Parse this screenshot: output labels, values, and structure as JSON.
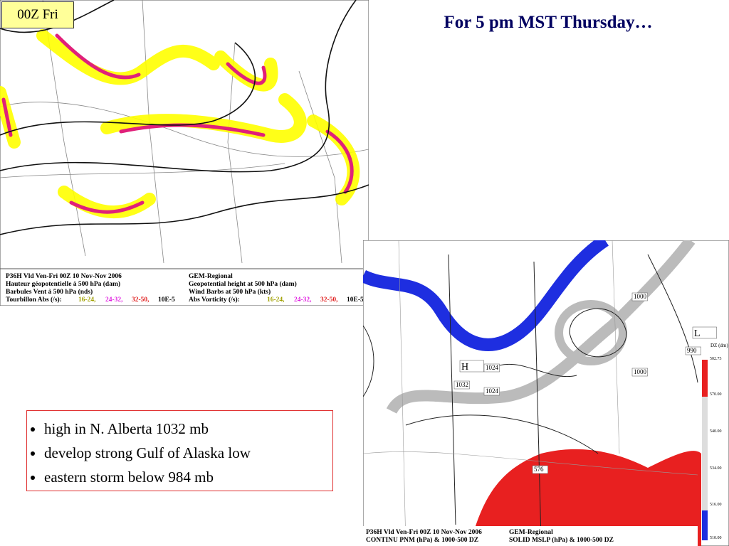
{
  "slide_label": "00Z Fri",
  "title": "For 5 pm MST Thursday…",
  "bullets": [
    "high in N. Alberta 1032 mb",
    "develop strong Gulf of Alaska low",
    "eastern storm below 984 mb"
  ],
  "left_map": {
    "legend_fr": [
      "P36H Vld Ven-Fri 00Z 10 Nov-Nov 2006",
      "Hauteur géopotentielle à 500 hPa (dam)",
      "Barbules Vent à 500 hPa (nds)",
      "Tourbillon Abs (/s):"
    ],
    "legend_en": [
      "GEM-Regional",
      "Geopotential height at 500 hPa (dam)",
      "Wind Barbs at 500 hPa  (kts)",
      "Abs Vorticity (/s):"
    ],
    "scale": [
      "16-24,",
      "24-32,",
      "32-50,",
      "10E-5"
    ]
  },
  "right_map": {
    "legend_left": [
      "P36H Vld Ven-Fri 00Z 10 Nov-Nov 2006",
      "CONTINU PNM  (hPa) & 1000-500 DZ"
    ],
    "legend_right": [
      "GEM-Regional",
      "SOLID   MSLP (hPa) & 1000-500 DZ"
    ],
    "colorbar_title": "DZ (dm)",
    "colorbar_labels": [
      "502.73",
      "570.00",
      "540.00",
      "534.00",
      "516.00",
      "510.00"
    ],
    "labels": [
      "H",
      "1032",
      "1024",
      "1024",
      "1000",
      "1000",
      "L",
      "990",
      "576"
    ]
  }
}
